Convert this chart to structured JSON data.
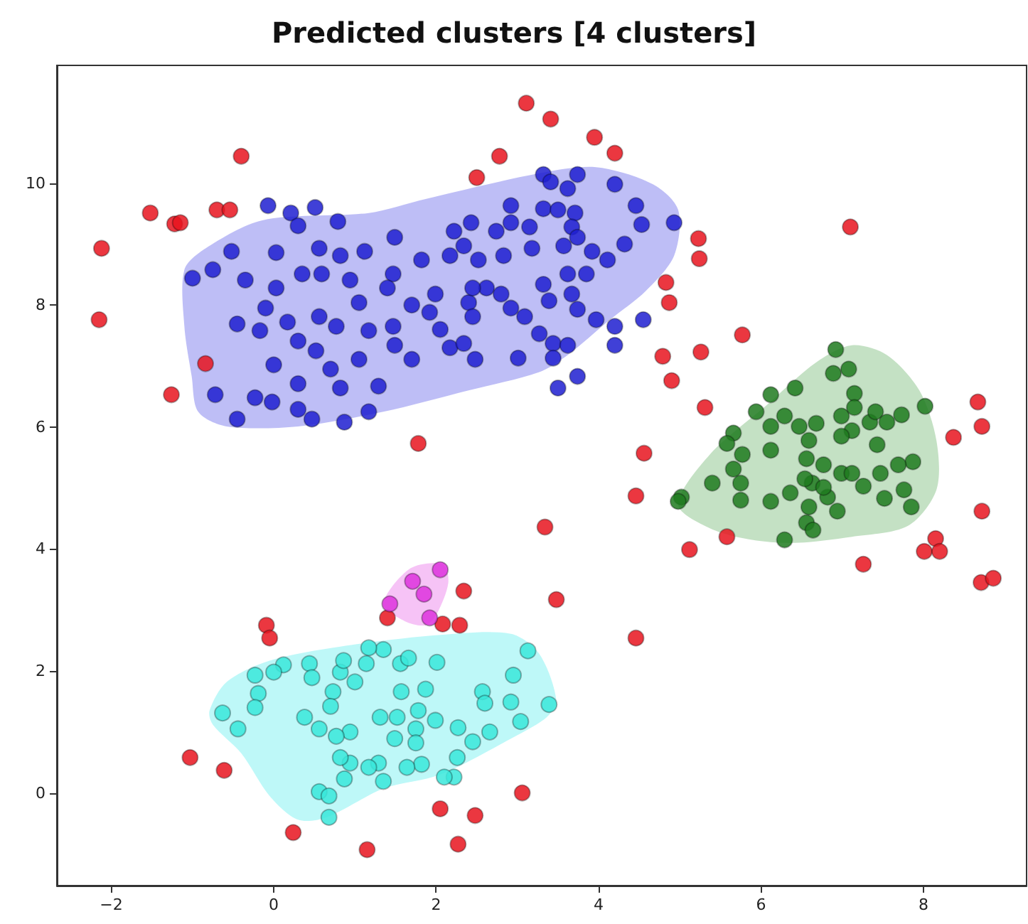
{
  "chart_data": {
    "type": "scatter",
    "title": "Predicted clusters [4 clusters]",
    "xlim": [
      -2.67,
      9.27
    ],
    "ylim": [
      -1.52,
      11.93
    ],
    "xticks": [
      -2,
      0,
      2,
      4,
      6,
      8
    ],
    "yticks": [
      0,
      2,
      4,
      6,
      8,
      10
    ],
    "grid": false,
    "marker": "circle",
    "series": [
      {
        "type": "area",
        "marker": "none",
        "color": "#b3b3f5",
        "x": [
          -1.1,
          -0.84,
          -0.14,
          1.17,
          1.87,
          3.27,
          3.97,
          4.67,
          4.98,
          4.93,
          4.58,
          4.14,
          3.62,
          3.27,
          2.4,
          1.35,
          0.3,
          -0.58,
          -0.93,
          -1.01,
          -1.1
        ],
        "values": [
          8.58,
          8.93,
          9.39,
          9.51,
          9.74,
          10.16,
          10.26,
          9.98,
          9.56,
          8.81,
          8.23,
          7.76,
          7.18,
          6.9,
          6.6,
          6.25,
          6.01,
          6.01,
          6.25,
          6.83,
          7.65
        ]
      },
      {
        "type": "area",
        "marker": "none",
        "color": "#badcba",
        "x": [
          4.98,
          5.37,
          6.07,
          6.68,
          7.12,
          7.55,
          7.95,
          8.16,
          8.16,
          7.81,
          7.12,
          6.42,
          5.89,
          5.37
        ],
        "values": [
          4.73,
          5.55,
          6.36,
          7.06,
          7.34,
          7.18,
          6.6,
          5.78,
          4.97,
          4.38,
          4.2,
          4.1,
          4.15,
          4.34
        ]
      },
      {
        "type": "area",
        "marker": "none",
        "color": "#b3f7f7",
        "x": [
          -0.79,
          -0.58,
          -0.05,
          0.82,
          2.05,
          2.92,
          3.27,
          3.48,
          3.36,
          2.92,
          2.05,
          1.35,
          0.65,
          0.3,
          -0.05,
          -0.4,
          -0.75
        ],
        "values": [
          1.35,
          1.82,
          2.17,
          2.4,
          2.59,
          2.61,
          2.28,
          1.52,
          1.24,
          0.89,
          0.3,
          0.07,
          -0.4,
          -0.44,
          -0.05,
          0.65,
          1.12
        ]
      },
      {
        "type": "area",
        "marker": "none",
        "color": "#f5b8f5",
        "x": [
          1.35,
          1.68,
          2.08,
          2.15,
          2.01,
          1.87,
          1.61
        ],
        "values": [
          3.1,
          3.68,
          3.75,
          3.45,
          2.94,
          2.75,
          2.82
        ]
      },
      {
        "color": "#e8141e",
        "x": [
          -2.12,
          -2.15,
          -1.52,
          -1.22,
          -1.15,
          -0.7,
          -0.54,
          -0.4,
          -1.26,
          -0.84,
          1.78,
          2.5,
          2.78,
          3.11,
          3.41,
          3.95,
          4.2,
          5.23,
          5.24,
          4.83,
          4.87,
          5.26,
          4.79,
          4.9,
          5.31,
          5.77,
          4.56,
          4.46,
          5.12,
          5.58,
          7.26,
          8.37,
          8.67,
          8.72,
          8.72,
          8.15,
          8.01,
          8.2,
          8.71,
          8.86,
          7.1,
          4.46,
          3.34,
          3.48,
          2.34,
          1.4,
          2.08,
          2.29,
          -0.09,
          -0.05,
          -1.03,
          -0.61,
          0.24,
          1.15,
          2.05,
          2.48,
          2.27,
          3.06
        ],
        "values": [
          8.93,
          7.76,
          9.51,
          9.33,
          9.35,
          9.56,
          9.56,
          10.44,
          6.53,
          7.04,
          5.73,
          10.09,
          10.44,
          11.31,
          11.05,
          10.75,
          10.49,
          9.09,
          8.76,
          8.37,
          8.04,
          7.23,
          7.16,
          6.76,
          6.32,
          7.51,
          5.57,
          4.87,
          3.99,
          4.2,
          3.75,
          5.83,
          6.41,
          6.01,
          4.62,
          4.17,
          3.96,
          3.96,
          3.45,
          3.52,
          9.28,
          2.54,
          4.36,
          3.17,
          3.31,
          2.87,
          2.77,
          2.75,
          2.75,
          2.54,
          0.58,
          0.37,
          -0.65,
          -0.93,
          -0.26,
          -0.37,
          -0.84,
          0.0
        ]
      },
      {
        "color": "#1f1fd0",
        "x": [
          -0.07,
          0.21,
          0.51,
          0.79,
          0.3,
          -0.52,
          -1.0,
          -0.75,
          -0.45,
          -0.72,
          -0.45,
          -0.23,
          -0.02,
          0.0,
          -0.17,
          -0.1,
          0.03,
          -0.35,
          0.03,
          0.56,
          0.82,
          0.35,
          0.59,
          0.17,
          0.3,
          0.56,
          0.77,
          0.52,
          0.7,
          0.82,
          0.3,
          0.3,
          0.47,
          0.87,
          1.17,
          1.29,
          1.05,
          1.17,
          1.05,
          0.94,
          1.12,
          1.49,
          1.47,
          1.4,
          1.7,
          1.47,
          1.49,
          1.7,
          1.82,
          1.99,
          1.92,
          2.05,
          2.17,
          2.34,
          2.48,
          2.22,
          2.43,
          2.34,
          2.52,
          2.74,
          2.92,
          2.92,
          2.83,
          2.62,
          2.4,
          2.45,
          2.8,
          2.92,
          3.09,
          3.01,
          3.15,
          3.18,
          3.32,
          3.41,
          3.74,
          3.62,
          3.32,
          3.5,
          3.71,
          3.67,
          3.57,
          3.74,
          3.92,
          4.11,
          4.32,
          4.2,
          4.46,
          4.53,
          4.93,
          3.32,
          3.62,
          3.85,
          3.67,
          3.74,
          3.39,
          3.27,
          3.44,
          3.62,
          3.44,
          3.97,
          4.2,
          4.2,
          4.55,
          3.5,
          3.74,
          2.17,
          2.45
        ],
        "values": [
          9.63,
          9.51,
          9.6,
          9.37,
          9.3,
          8.88,
          8.44,
          8.58,
          7.69,
          6.53,
          6.13,
          6.48,
          6.41,
          7.02,
          7.58,
          7.95,
          8.28,
          8.41,
          8.86,
          8.93,
          8.81,
          8.51,
          8.51,
          7.72,
          7.41,
          7.81,
          7.65,
          7.25,
          6.95,
          6.64,
          6.71,
          6.29,
          6.13,
          6.08,
          6.25,
          6.67,
          7.11,
          7.58,
          8.04,
          8.41,
          8.88,
          9.11,
          8.51,
          8.28,
          8.0,
          7.65,
          7.34,
          7.11,
          8.74,
          8.18,
          7.88,
          7.6,
          7.3,
          7.37,
          7.11,
          9.21,
          9.35,
          8.97,
          8.74,
          9.21,
          9.63,
          9.35,
          8.81,
          8.28,
          8.04,
          7.81,
          8.18,
          7.95,
          7.81,
          7.13,
          9.28,
          8.93,
          10.14,
          10.02,
          10.14,
          9.91,
          9.58,
          9.56,
          9.51,
          9.28,
          8.97,
          9.11,
          8.88,
          8.74,
          9.0,
          9.98,
          9.63,
          9.32,
          9.35,
          8.34,
          8.51,
          8.51,
          8.18,
          7.93,
          8.07,
          7.53,
          7.37,
          7.34,
          7.13,
          7.76,
          7.65,
          7.34,
          7.76,
          6.64,
          6.83,
          8.81,
          8.28
        ]
      },
      {
        "color": "#1e7a1e",
        "x": [
          6.92,
          6.89,
          7.08,
          7.15,
          6.42,
          6.12,
          5.94,
          5.66,
          5.58,
          5.77,
          5.66,
          5.75,
          5.75,
          5.4,
          5.02,
          4.98,
          6.12,
          6.12,
          6.12,
          6.29,
          6.47,
          6.68,
          6.59,
          6.56,
          6.36,
          6.63,
          6.77,
          6.99,
          6.59,
          6.56,
          6.64,
          6.29,
          6.82,
          6.94,
          7.12,
          7.26,
          7.47,
          7.52,
          7.76,
          7.85,
          7.87,
          7.69,
          7.43,
          6.99,
          7.12,
          7.34,
          7.41,
          7.55,
          7.73,
          8.02,
          7.15,
          6.99,
          6.54,
          6.77
        ],
        "values": [
          7.27,
          6.88,
          6.95,
          6.55,
          6.64,
          6.53,
          6.25,
          5.9,
          5.73,
          5.55,
          5.31,
          5.08,
          4.8,
          5.08,
          4.85,
          4.78,
          5.62,
          4.78,
          6.01,
          6.18,
          6.01,
          6.06,
          5.78,
          5.48,
          4.92,
          5.08,
          5.38,
          5.24,
          4.69,
          4.43,
          4.31,
          4.15,
          4.85,
          4.62,
          5.24,
          5.03,
          5.24,
          4.83,
          4.97,
          4.69,
          5.43,
          5.38,
          5.71,
          6.18,
          5.94,
          6.08,
          6.25,
          6.08,
          6.2,
          6.34,
          6.32,
          5.85,
          5.15,
          5.01
        ]
      },
      {
        "color": "#3ae8da",
        "x": [
          3.13,
          3.39,
          2.95,
          2.92,
          3.04,
          2.57,
          2.6,
          2.66,
          2.45,
          2.27,
          2.26,
          2.22,
          2.1,
          2.01,
          1.87,
          1.99,
          1.78,
          1.75,
          1.75,
          1.82,
          1.64,
          1.52,
          1.49,
          1.57,
          1.56,
          1.66,
          1.35,
          1.17,
          1.14,
          1.31,
          1.29,
          1.35,
          1.17,
          0.94,
          0.82,
          0.87,
          0.94,
          0.77,
          0.56,
          0.38,
          0.73,
          0.7,
          1.0,
          0.82,
          0.86,
          0.44,
          0.47,
          0.12,
          0.0,
          -0.23,
          -0.19,
          -0.23,
          -0.44,
          -0.63,
          0.56,
          0.68,
          0.68
        ],
        "values": [
          2.33,
          1.45,
          1.93,
          1.49,
          1.17,
          1.66,
          1.47,
          1.0,
          0.84,
          1.07,
          0.58,
          0.26,
          0.26,
          2.14,
          1.7,
          1.19,
          1.35,
          1.05,
          0.82,
          0.47,
          0.42,
          1.24,
          0.89,
          1.66,
          2.12,
          2.21,
          2.35,
          2.38,
          2.12,
          1.24,
          0.49,
          0.19,
          0.42,
          0.49,
          0.58,
          0.23,
          1.0,
          0.93,
          1.05,
          1.24,
          1.66,
          1.42,
          1.82,
          1.98,
          2.17,
          2.12,
          1.89,
          2.1,
          1.98,
          1.93,
          1.63,
          1.4,
          1.05,
          1.31,
          0.02,
          -0.05,
          -0.4
        ]
      },
      {
        "color": "#dd33dd",
        "x": [
          2.05,
          1.71,
          1.85,
          1.43,
          1.92
        ],
        "values": [
          3.66,
          3.47,
          3.26,
          3.1,
          2.87
        ]
      }
    ]
  }
}
